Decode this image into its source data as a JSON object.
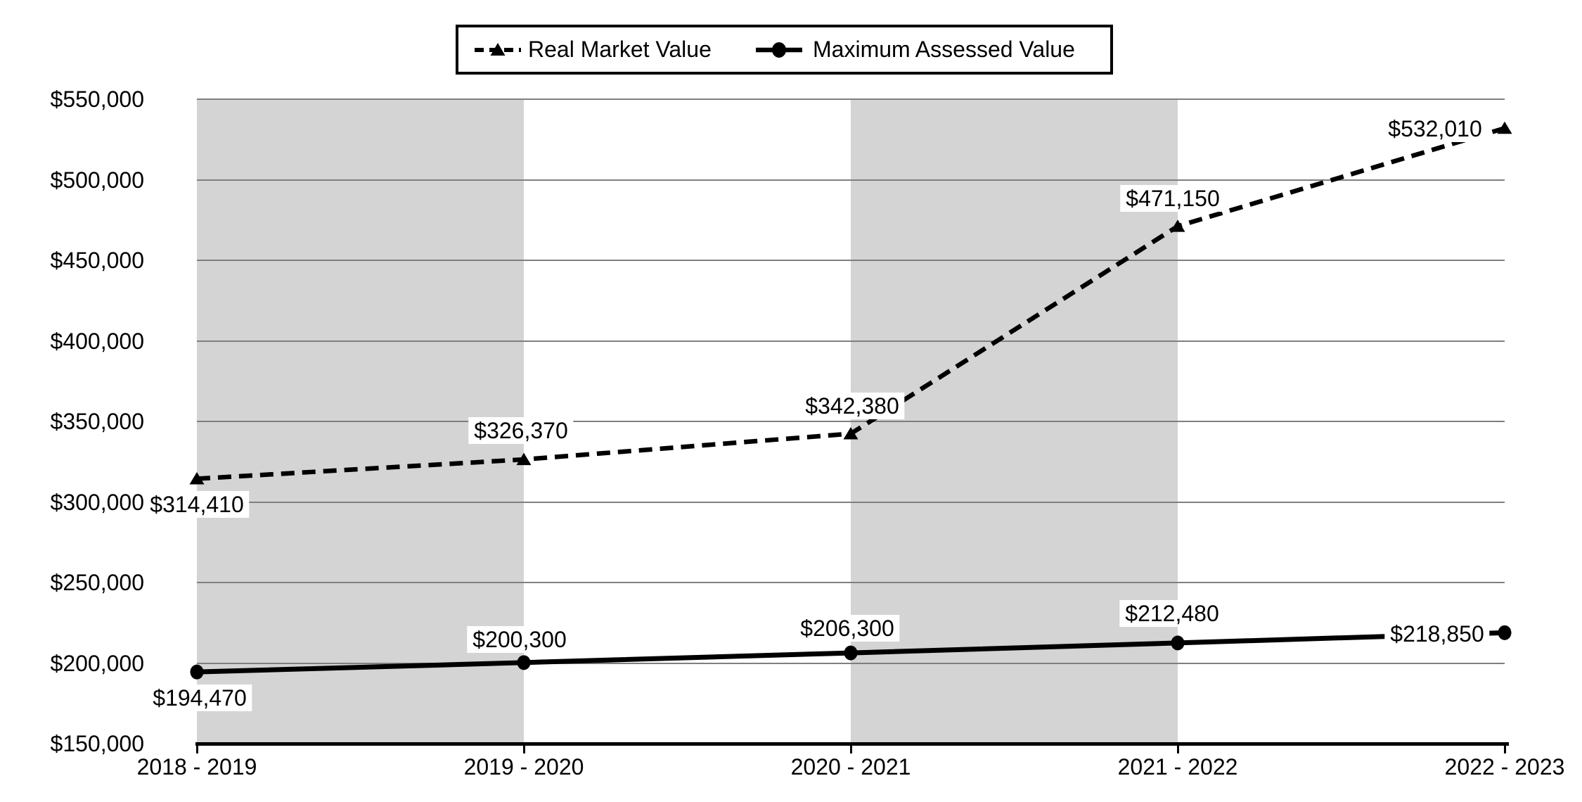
{
  "chart_data": {
    "type": "line",
    "title": "",
    "categories": [
      "2018 - 2019",
      "2019 - 2020",
      "2020 - 2021",
      "2021 - 2022",
      "2022 - 2023"
    ],
    "series": [
      {
        "name": "Real Market Value",
        "line_style": "dashed",
        "marker": "triangle",
        "color": "#000000",
        "values": [
          314410,
          326370,
          342380,
          471150,
          532010
        ],
        "data_labels": [
          "$314,410",
          "$326,370",
          "$342,380",
          "$471,150",
          "$532,010"
        ]
      },
      {
        "name": "Maximum Assessed Value",
        "line_style": "solid",
        "marker": "circle",
        "color": "#000000",
        "values": [
          194470,
          200300,
          206300,
          212480,
          218850
        ],
        "data_labels": [
          "$194,470",
          "$200,300",
          "$206,300",
          "$212,480",
          "$218,850"
        ]
      }
    ],
    "xlabel": "",
    "ylabel": "",
    "ylim": [
      150000,
      550000
    ],
    "ytick_step": 50000,
    "y_tick_labels": [
      "$550,000",
      "$500,000",
      "$450,000",
      "$400,000",
      "$350,000",
      "$300,000",
      "$250,000",
      "$200,000",
      "$150,000"
    ],
    "grid": true,
    "legend_position": "top-center",
    "shaded_bands": {
      "color": "#d4d4d4",
      "category_spans": [
        [
          0,
          1
        ],
        [
          2,
          3
        ]
      ]
    },
    "colors": {
      "series_line": "#000000",
      "gridline": "#7f7f7f",
      "axis": "#000000",
      "background": "#ffffff",
      "data_label_background": "#ffffff"
    }
  }
}
